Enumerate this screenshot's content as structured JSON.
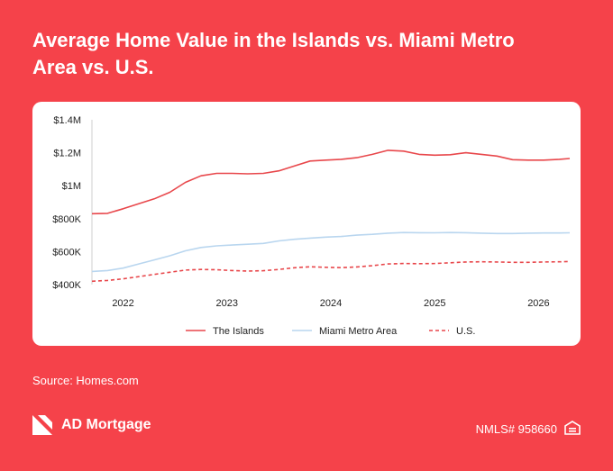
{
  "title_line1": "Average Home Value in the Islands vs. Miami Metro",
  "title_line2": "Area vs. U.S.",
  "source": "Source: Homes.com",
  "brand": "AD Mortgage",
  "nmls": "NMLS# 958660",
  "icons": {
    "logo": "ad-mortgage-logo-icon",
    "equal_housing": "equal-housing-icon"
  },
  "colors": {
    "background": "#f5424a",
    "the_islands": "#e8474b",
    "miami_metro": "#b9d6ef",
    "us": "#e8474b"
  },
  "chart_data": {
    "type": "line",
    "x_ticks": [
      "2022",
      "2023",
      "2024",
      "2025",
      "2026"
    ],
    "y_ticks": [
      "$400K",
      "$600K",
      "$800K",
      "$1M",
      "$1.2M",
      "$1.4M"
    ],
    "ylim": [
      400000,
      1400000
    ],
    "xlim": [
      2021.7,
      2026.3
    ],
    "grid": false,
    "legend_position": "bottom",
    "series": [
      {
        "name": "The Islands",
        "style": "solid",
        "x": [
          2021.7,
          2021.85,
          2022.0,
          2022.15,
          2022.3,
          2022.45,
          2022.6,
          2022.75,
          2022.9,
          2023.05,
          2023.2,
          2023.35,
          2023.5,
          2023.65,
          2023.8,
          2023.95,
          2024.1,
          2024.25,
          2024.4,
          2024.55,
          2024.7,
          2024.85,
          2025.0,
          2025.15,
          2025.3,
          2025.45,
          2025.6,
          2025.75,
          2025.9,
          2026.05,
          2026.2,
          2026.3
        ],
        "y": [
          830000,
          832000,
          860000,
          890000,
          920000,
          960000,
          1020000,
          1060000,
          1075000,
          1075000,
          1072000,
          1075000,
          1090000,
          1120000,
          1150000,
          1155000,
          1160000,
          1170000,
          1190000,
          1215000,
          1210000,
          1190000,
          1185000,
          1188000,
          1200000,
          1190000,
          1180000,
          1158000,
          1155000,
          1155000,
          1160000,
          1165000
        ]
      },
      {
        "name": "Miami Metro Area",
        "style": "solid",
        "x": [
          2021.7,
          2021.85,
          2022.0,
          2022.15,
          2022.3,
          2022.45,
          2022.6,
          2022.75,
          2022.9,
          2023.05,
          2023.2,
          2023.35,
          2023.5,
          2023.65,
          2023.8,
          2023.95,
          2024.1,
          2024.25,
          2024.4,
          2024.55,
          2024.7,
          2024.85,
          2025.0,
          2025.15,
          2025.3,
          2025.45,
          2025.6,
          2025.75,
          2025.9,
          2026.05,
          2026.2,
          2026.3
        ],
        "y": [
          480000,
          485000,
          500000,
          525000,
          550000,
          575000,
          605000,
          625000,
          635000,
          640000,
          645000,
          650000,
          665000,
          675000,
          682000,
          688000,
          692000,
          700000,
          705000,
          712000,
          716000,
          715000,
          714000,
          716000,
          715000,
          712000,
          710000,
          710000,
          712000,
          713000,
          713000,
          714000
        ]
      },
      {
        "name": "U.S.",
        "style": "dashed",
        "x": [
          2021.7,
          2021.85,
          2022.0,
          2022.15,
          2022.3,
          2022.45,
          2022.6,
          2022.75,
          2022.9,
          2023.05,
          2023.2,
          2023.35,
          2023.5,
          2023.65,
          2023.8,
          2023.95,
          2024.1,
          2024.25,
          2024.4,
          2024.55,
          2024.7,
          2024.85,
          2025.0,
          2025.15,
          2025.3,
          2025.45,
          2025.6,
          2025.75,
          2025.9,
          2026.05,
          2026.2,
          2026.3
        ],
        "y": [
          420000,
          425000,
          435000,
          448000,
          462000,
          475000,
          488000,
          492000,
          490000,
          485000,
          482000,
          484000,
          492000,
          502000,
          508000,
          505000,
          503000,
          507000,
          515000,
          525000,
          528000,
          527000,
          528000,
          532000,
          537000,
          538000,
          537000,
          535000,
          535000,
          537000,
          538000,
          540000
        ]
      }
    ]
  }
}
